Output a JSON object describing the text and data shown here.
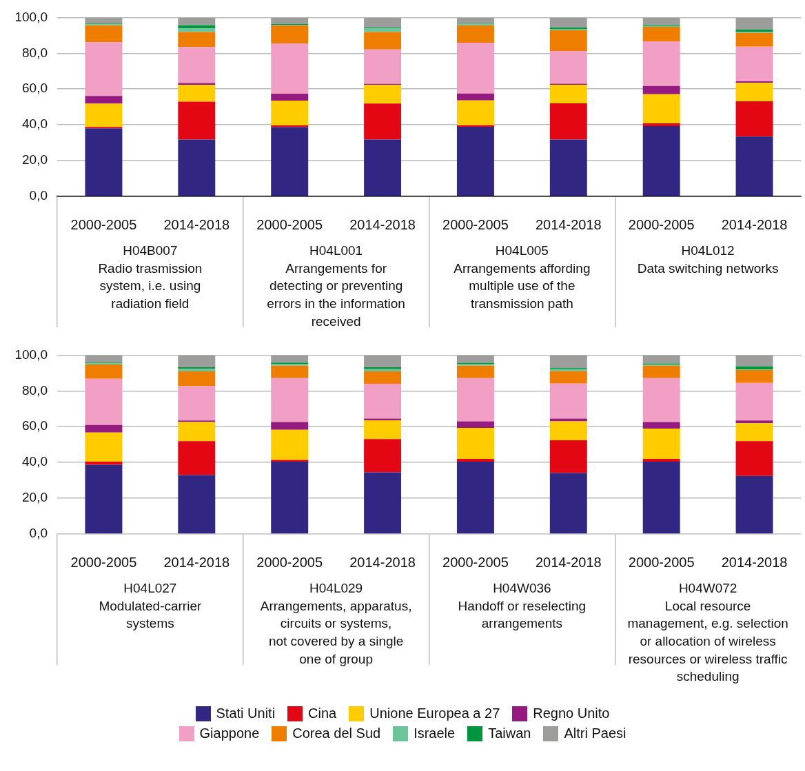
{
  "chart_data": [
    {
      "type": "bar",
      "stacked": true,
      "grid": "y",
      "legend": false,
      "categories": [
        "2000-2005",
        "2014-2018",
        "2000-2005",
        "2014-2018",
        "2000-2005",
        "2014-2018",
        "2000-2005",
        "2014-2018"
      ],
      "ylim": [
        0,
        100
      ],
      "yticks": [
        {
          "value": 0,
          "label": "0,0"
        },
        {
          "value": 20,
          "label": "20,0"
        },
        {
          "value": 40,
          "label": "40,0"
        },
        {
          "value": 60,
          "label": "60,0"
        },
        {
          "value": 80,
          "label": "80,0"
        },
        {
          "value": 100,
          "label": "100,0"
        }
      ],
      "annotations": [
        "H04B007\nRadio trasmission\nsystem, i.e. using\nradiation field",
        "H04L001\nArrangements for\ndetecting or preventing\nerrors in the information\nreceived",
        "H04L005\nArrangements affording\nmultiple use of the\ntransmission path",
        "H04L012\nData switching networks"
      ],
      "series": [
        {
          "color": "#312783",
          "values": [
            38,
            31.8,
            38.7,
            31.8,
            38.9,
            31.8,
            39.3,
            33.4
          ]
        },
        {
          "color": "#e30613",
          "values": [
            0.8,
            21.2,
            1,
            20.1,
            0.9,
            20.2,
            1.5,
            19.8
          ]
        },
        {
          "color": "#ffcc00",
          "values": [
            13,
            9.3,
            13.8,
            10.4,
            13.8,
            10.4,
            16.3,
            10.3
          ]
        },
        {
          "color": "#951b81",
          "values": [
            4.3,
            1.1,
            3.9,
            0.6,
            3.9,
            0.6,
            4.6,
            0.8
          ]
        },
        {
          "color": "#f29fc5",
          "values": [
            30.1,
            20.1,
            28.1,
            19.2,
            28.4,
            18.3,
            25,
            19.4
          ]
        },
        {
          "color": "#ef7d00",
          "values": [
            9.4,
            8.4,
            10,
            9.8,
            9.6,
            11.5,
            8.1,
            7.7
          ]
        },
        {
          "color": "#6cc49a",
          "values": [
            0.5,
            2,
            0.3,
            2,
            0.6,
            0.6,
            0.4,
            0.7
          ]
        },
        {
          "color": "#009640",
          "values": [
            0.5,
            1.8,
            0.6,
            0.6,
            0.4,
            1.1,
            0.6,
            1.1
          ]
        },
        {
          "color": "#9d9d9c",
          "values": [
            3.5,
            4.3,
            3.6,
            5.5,
            3.5,
            5.5,
            4.2,
            6.8
          ]
        }
      ]
    },
    {
      "type": "bar",
      "stacked": true,
      "grid": "y",
      "legend": "bottom",
      "categories": [
        "2000-2005",
        "2014-2018",
        "2000-2005",
        "2014-2018",
        "2000-2005",
        "2014-2018",
        "2000-2005",
        "2014-2018"
      ],
      "ylim": [
        0,
        100
      ],
      "yticks": [
        {
          "value": 0,
          "label": "0,0"
        },
        {
          "value": 20,
          "label": "20,0"
        },
        {
          "value": 40,
          "label": "40,0"
        },
        {
          "value": 60,
          "label": "60,0"
        },
        {
          "value": 80,
          "label": "80,0"
        },
        {
          "value": 100,
          "label": "100,0"
        }
      ],
      "annotations": [
        "H04L027\nModulated-carrier\nsystems",
        "H04L029\nArrangements, apparatus,\ncircuits or systems,\nnot covered by a single\none of group",
        "H04W036\nHandoff or reselecting\narrangements",
        "H04W072\nLocal resource\nmanagement, e.g. selection\nor allocation of wireless\nresources or wireless traffic\nscheduling"
      ],
      "series": [
        {
          "name": "Stati Uniti",
          "color": "#312783",
          "values": [
            38.7,
            32.9,
            40.4,
            34.5,
            40.4,
            34.1,
            40.4,
            32.5
          ]
        },
        {
          "name": "Cina",
          "color": "#e30613",
          "values": [
            1.7,
            19,
            1,
            18.6,
            1.6,
            18.3,
            1.6,
            19.4
          ]
        },
        {
          "name": "Unione Europea a 27",
          "color": "#ffcc00",
          "values": [
            16.3,
            10.7,
            16.9,
            10.5,
            17.3,
            10.6,
            16.9,
            10
          ]
        },
        {
          "name": "Regno Unito",
          "color": "#951b81",
          "values": [
            4.3,
            0.9,
            4.3,
            0.9,
            3.7,
            1.5,
            3.7,
            1.6
          ]
        },
        {
          "name": "Giappone",
          "color": "#f29fc5",
          "values": [
            25.8,
            19.1,
            24.6,
            19.5,
            24.2,
            19.6,
            24.6,
            21
          ]
        },
        {
          "name": "Corea del Sud",
          "color": "#ef7d00",
          "values": [
            8,
            8.3,
            6.9,
            6.9,
            6.9,
            6.9,
            6.9,
            7.2
          ]
        },
        {
          "name": "Israele",
          "color": "#6cc49a",
          "values": [
            0.5,
            1.5,
            1,
            1.3,
            1,
            1,
            0.6,
            0.3
          ]
        },
        {
          "name": "Taiwan",
          "color": "#009640",
          "values": [
            0.5,
            0.8,
            0.7,
            1,
            0.6,
            0.7,
            0.6,
            1.7
          ]
        },
        {
          "name": "Altri Paesi",
          "color": "#9d9d9c",
          "values": [
            4.2,
            6.8,
            4.2,
            6.8,
            4.3,
            7.3,
            4.7,
            6.3
          ]
        }
      ]
    }
  ]
}
